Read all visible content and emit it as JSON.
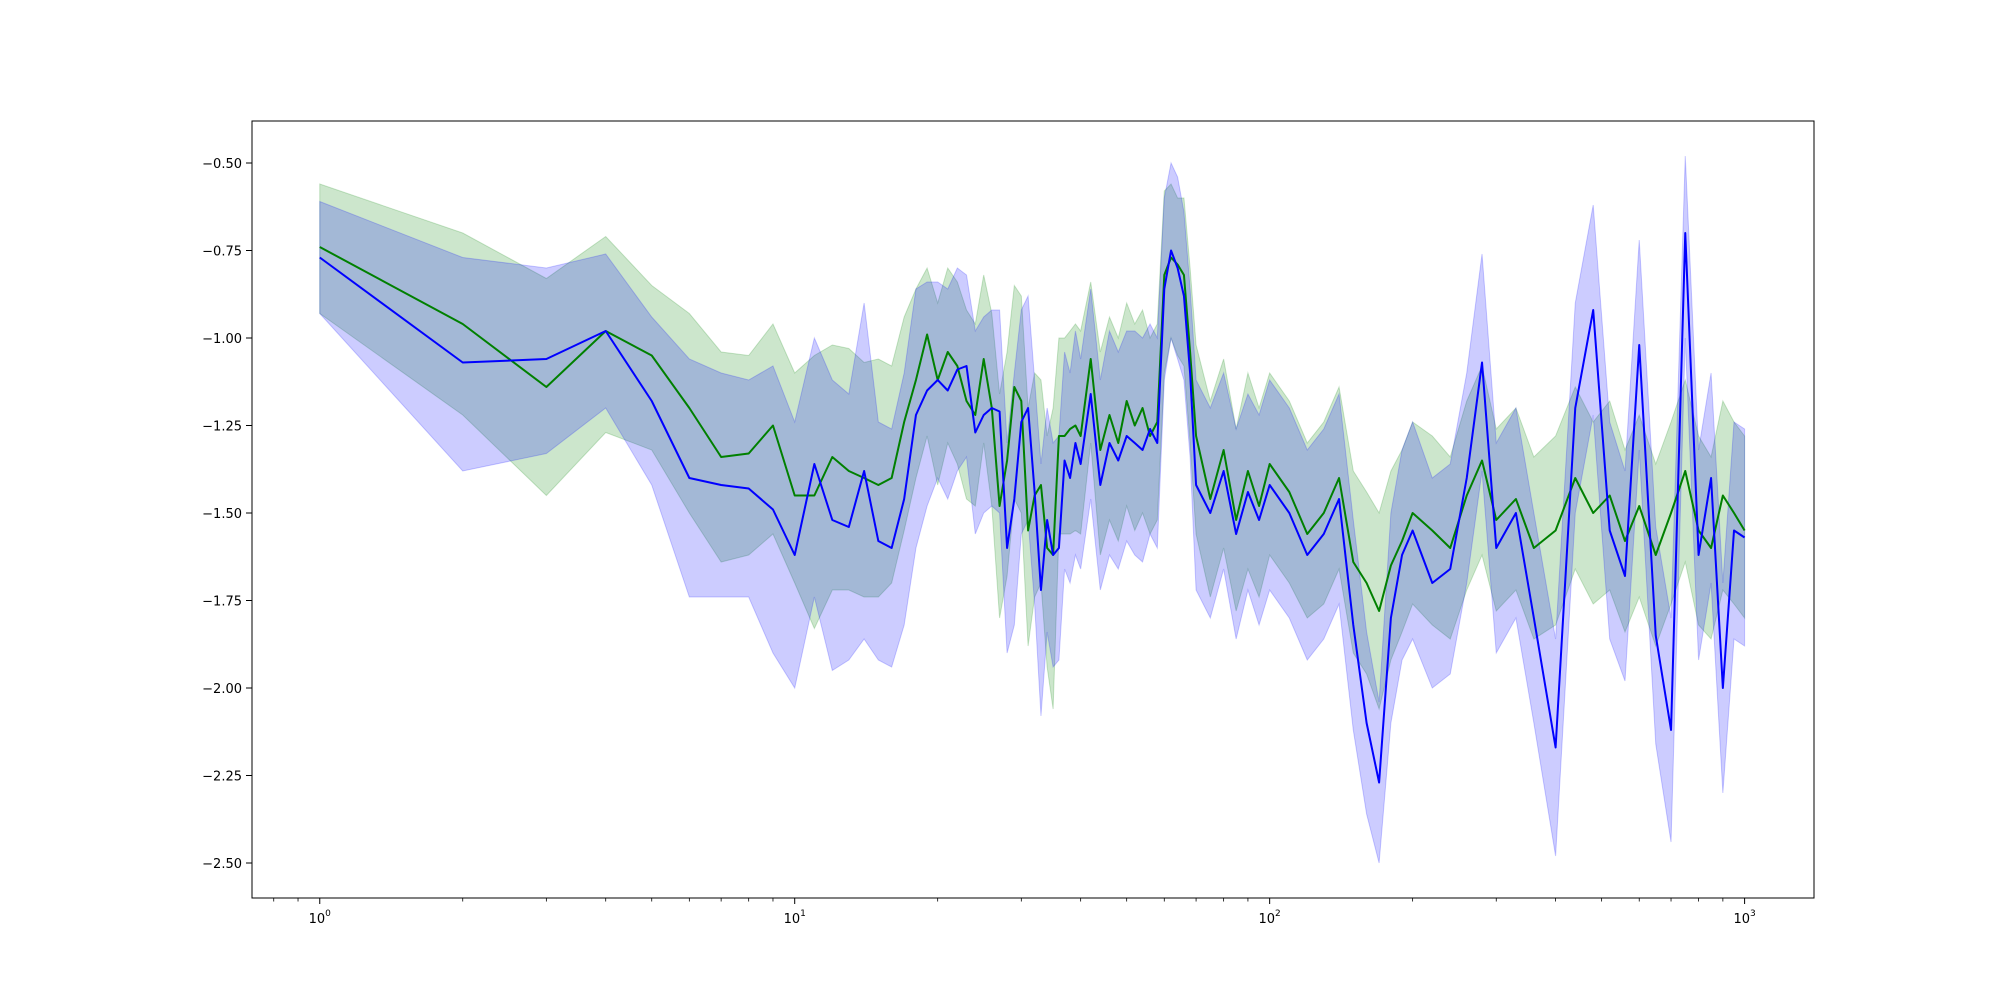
{
  "chart_data": {
    "type": "line",
    "title": "",
    "xlabel": "",
    "ylabel": "",
    "xscale": "log",
    "xlim": [
      0.72,
      1400
    ],
    "ylim": [
      -2.6,
      -0.38
    ],
    "grid": false,
    "legend": "none",
    "x_ticks": [
      {
        "base": "10",
        "exp": "0",
        "value": 1
      },
      {
        "base": "10",
        "exp": "1",
        "value": 10
      },
      {
        "base": "10",
        "exp": "2",
        "value": 100
      },
      {
        "base": "10",
        "exp": "3",
        "value": 1000
      }
    ],
    "y_ticks": [
      {
        "label": "−0.50",
        "value": -0.5
      },
      {
        "label": "−0.75",
        "value": -0.75
      },
      {
        "label": "−1.00",
        "value": -1.0
      },
      {
        "label": "−1.25",
        "value": -1.25
      },
      {
        "label": "−1.50",
        "value": -1.5
      },
      {
        "label": "−1.75",
        "value": -1.75
      },
      {
        "label": "−2.00",
        "value": -2.0
      },
      {
        "label": "−2.25",
        "value": -2.25
      },
      {
        "label": "−2.50",
        "value": -2.5
      }
    ],
    "series": [
      {
        "color": "#008000",
        "band_color": "#008000",
        "band_opacity": 0.2,
        "x": [
          1,
          2,
          3,
          4,
          5,
          6,
          7,
          8,
          9,
          10,
          11,
          12,
          13,
          14,
          15,
          16,
          17,
          18,
          19,
          20,
          21,
          22,
          23,
          24,
          25,
          26,
          27,
          28,
          29,
          30,
          31,
          32,
          33,
          34,
          35,
          36,
          37,
          38,
          39,
          40,
          42,
          44,
          46,
          48,
          50,
          52,
          54,
          56,
          58,
          60,
          62,
          64,
          66,
          68,
          70,
          75,
          80,
          85,
          90,
          95,
          100,
          110,
          120,
          130,
          140,
          150,
          160,
          170,
          180,
          190,
          200,
          220,
          240,
          260,
          280,
          300,
          330,
          360,
          400,
          440,
          480,
          520,
          560,
          600,
          650,
          700,
          750,
          800,
          850,
          900,
          950,
          1000
        ],
        "values": [
          -0.74,
          -0.96,
          -1.14,
          -0.98,
          -1.05,
          -1.2,
          -1.34,
          -1.33,
          -1.25,
          -1.45,
          -1.45,
          -1.34,
          -1.38,
          -1.4,
          -1.42,
          -1.4,
          -1.24,
          -1.12,
          -0.99,
          -1.12,
          -1.04,
          -1.08,
          -1.18,
          -1.22,
          -1.06,
          -1.2,
          -1.48,
          -1.35,
          -1.14,
          -1.18,
          -1.55,
          -1.45,
          -1.42,
          -1.6,
          -1.62,
          -1.28,
          -1.28,
          -1.26,
          -1.25,
          -1.28,
          -1.06,
          -1.32,
          -1.22,
          -1.3,
          -1.18,
          -1.25,
          -1.2,
          -1.28,
          -1.24,
          -0.82,
          -0.77,
          -0.79,
          -0.82,
          -1.04,
          -1.28,
          -1.46,
          -1.32,
          -1.52,
          -1.38,
          -1.48,
          -1.36,
          -1.44,
          -1.56,
          -1.5,
          -1.4,
          -1.64,
          -1.7,
          -1.78,
          -1.65,
          -1.58,
          -1.5,
          -1.55,
          -1.6,
          -1.45,
          -1.35,
          -1.52,
          -1.46,
          -1.6,
          -1.55,
          -1.4,
          -1.5,
          -1.45,
          -1.58,
          -1.48,
          -1.62,
          -1.5,
          -1.38,
          -1.55,
          -1.6,
          -1.45,
          -1.5,
          -1.55
        ],
        "lower": [
          -0.93,
          -1.22,
          -1.45,
          -1.27,
          -1.32,
          -1.5,
          -1.64,
          -1.62,
          -1.56,
          -1.7,
          -1.83,
          -1.72,
          -1.72,
          -1.74,
          -1.74,
          -1.7,
          -1.55,
          -1.4,
          -1.28,
          -1.42,
          -1.3,
          -1.36,
          -1.46,
          -1.48,
          -1.3,
          -1.48,
          -1.8,
          -1.68,
          -1.46,
          -1.5,
          -1.88,
          -1.74,
          -1.7,
          -1.94,
          -2.06,
          -1.56,
          -1.56,
          -1.56,
          -1.55,
          -1.56,
          -1.3,
          -1.62,
          -1.52,
          -1.58,
          -1.48,
          -1.55,
          -1.5,
          -1.56,
          -1.52,
          -1.1,
          -1.0,
          -1.05,
          -1.08,
          -1.3,
          -1.56,
          -1.74,
          -1.6,
          -1.78,
          -1.66,
          -1.74,
          -1.62,
          -1.7,
          -1.8,
          -1.76,
          -1.66,
          -1.9,
          -1.96,
          -2.06,
          -1.92,
          -1.84,
          -1.76,
          -1.82,
          -1.86,
          -1.72,
          -1.62,
          -1.78,
          -1.72,
          -1.86,
          -1.82,
          -1.66,
          -1.76,
          -1.72,
          -1.84,
          -1.74,
          -1.88,
          -1.76,
          -1.64,
          -1.82,
          -1.86,
          -1.72,
          -1.76,
          -1.8
        ],
        "upper": [
          -0.56,
          -0.7,
          -0.83,
          -0.71,
          -0.85,
          -0.93,
          -1.04,
          -1.05,
          -0.96,
          -1.1,
          -1.05,
          -1.02,
          -1.03,
          -1.07,
          -1.06,
          -1.08,
          -0.94,
          -0.86,
          -0.8,
          -0.9,
          -0.8,
          -0.84,
          -0.92,
          -0.96,
          -0.82,
          -0.93,
          -1.16,
          -1.04,
          -0.85,
          -0.88,
          -1.2,
          -1.1,
          -1.12,
          -1.28,
          -1.2,
          -1.0,
          -1.0,
          -0.98,
          -0.96,
          -0.98,
          -0.84,
          -1.04,
          -0.94,
          -1.0,
          -0.9,
          -0.96,
          -0.92,
          -1.0,
          -0.96,
          -0.58,
          -0.56,
          -0.6,
          -0.6,
          -0.8,
          -1.02,
          -1.18,
          -1.06,
          -1.26,
          -1.1,
          -1.2,
          -1.1,
          -1.18,
          -1.3,
          -1.24,
          -1.14,
          -1.38,
          -1.44,
          -1.5,
          -1.38,
          -1.32,
          -1.24,
          -1.28,
          -1.34,
          -1.18,
          -1.08,
          -1.26,
          -1.2,
          -1.34,
          -1.28,
          -1.14,
          -1.24,
          -1.18,
          -1.32,
          -1.22,
          -1.36,
          -1.24,
          -1.12,
          -1.28,
          -1.34,
          -1.18,
          -1.24,
          -1.28
        ]
      },
      {
        "color": "#0000ff",
        "band_color": "#0000ff",
        "band_opacity": 0.2,
        "x": [
          1,
          2,
          3,
          4,
          5,
          6,
          7,
          8,
          9,
          10,
          11,
          12,
          13,
          14,
          15,
          16,
          17,
          18,
          19,
          20,
          21,
          22,
          23,
          24,
          25,
          26,
          27,
          28,
          29,
          30,
          31,
          32,
          33,
          34,
          35,
          36,
          37,
          38,
          39,
          40,
          42,
          44,
          46,
          48,
          50,
          52,
          54,
          56,
          58,
          60,
          62,
          64,
          66,
          68,
          70,
          75,
          80,
          85,
          90,
          95,
          100,
          110,
          120,
          130,
          140,
          150,
          160,
          170,
          180,
          190,
          200,
          220,
          240,
          260,
          280,
          300,
          330,
          360,
          400,
          440,
          480,
          520,
          560,
          600,
          650,
          700,
          750,
          800,
          850,
          900,
          950,
          1000
        ],
        "values": [
          -0.77,
          -1.07,
          -1.06,
          -0.98,
          -1.18,
          -1.4,
          -1.42,
          -1.43,
          -1.49,
          -1.62,
          -1.36,
          -1.52,
          -1.54,
          -1.38,
          -1.58,
          -1.6,
          -1.46,
          -1.22,
          -1.15,
          -1.12,
          -1.15,
          -1.09,
          -1.08,
          -1.27,
          -1.22,
          -1.2,
          -1.21,
          -1.6,
          -1.46,
          -1.24,
          -1.2,
          -1.44,
          -1.72,
          -1.52,
          -1.62,
          -1.6,
          -1.35,
          -1.4,
          -1.3,
          -1.36,
          -1.16,
          -1.42,
          -1.3,
          -1.35,
          -1.28,
          -1.3,
          -1.32,
          -1.26,
          -1.3,
          -0.86,
          -0.75,
          -0.8,
          -0.88,
          -1.1,
          -1.42,
          -1.5,
          -1.38,
          -1.56,
          -1.44,
          -1.52,
          -1.42,
          -1.5,
          -1.62,
          -1.56,
          -1.46,
          -1.82,
          -2.1,
          -2.27,
          -1.8,
          -1.62,
          -1.55,
          -1.7,
          -1.66,
          -1.4,
          -1.07,
          -1.6,
          -1.5,
          -1.8,
          -2.17,
          -1.2,
          -0.92,
          -1.55,
          -1.68,
          -1.02,
          -1.85,
          -2.12,
          -0.7,
          -1.62,
          -1.4,
          -2.0,
          -1.55,
          -1.57
        ],
        "lower": [
          -0.93,
          -1.38,
          -1.33,
          -1.2,
          -1.42,
          -1.74,
          -1.74,
          -1.74,
          -1.9,
          -2.0,
          -1.74,
          -1.95,
          -1.92,
          -1.86,
          -1.92,
          -1.94,
          -1.82,
          -1.6,
          -1.48,
          -1.4,
          -1.46,
          -1.38,
          -1.34,
          -1.56,
          -1.5,
          -1.48,
          -1.5,
          -1.9,
          -1.82,
          -1.56,
          -1.52,
          -1.76,
          -2.08,
          -1.84,
          -1.94,
          -1.92,
          -1.66,
          -1.7,
          -1.62,
          -1.66,
          -1.46,
          -1.72,
          -1.62,
          -1.66,
          -1.58,
          -1.62,
          -1.64,
          -1.56,
          -1.6,
          -1.12,
          -1.0,
          -1.06,
          -1.12,
          -1.34,
          -1.72,
          -1.8,
          -1.66,
          -1.86,
          -1.72,
          -1.82,
          -1.72,
          -1.8,
          -1.92,
          -1.86,
          -1.76,
          -2.12,
          -2.36,
          -2.5,
          -2.1,
          -1.92,
          -1.86,
          -2.0,
          -1.96,
          -1.7,
          -1.38,
          -1.9,
          -1.8,
          -2.1,
          -2.48,
          -1.5,
          -1.22,
          -1.86,
          -1.98,
          -1.32,
          -2.16,
          -2.44,
          -1.0,
          -1.92,
          -1.7,
          -2.3,
          -1.86,
          -1.88
        ],
        "upper": [
          -0.61,
          -0.77,
          -0.8,
          -0.76,
          -0.94,
          -1.06,
          -1.1,
          -1.12,
          -1.08,
          -1.24,
          -1.0,
          -1.12,
          -1.16,
          -0.9,
          -1.24,
          -1.26,
          -1.1,
          -0.86,
          -0.84,
          -0.84,
          -0.86,
          -0.8,
          -0.82,
          -0.98,
          -0.94,
          -0.92,
          -0.92,
          -1.3,
          -1.1,
          -0.92,
          -0.88,
          -1.12,
          -1.36,
          -1.2,
          -1.3,
          -1.28,
          -1.04,
          -1.1,
          -0.98,
          -1.06,
          -0.86,
          -1.12,
          -0.98,
          -1.04,
          -0.98,
          -0.98,
          -1.0,
          -0.96,
          -1.0,
          -0.6,
          -0.5,
          -0.54,
          -0.64,
          -0.86,
          -1.12,
          -1.2,
          -1.1,
          -1.26,
          -1.16,
          -1.22,
          -1.12,
          -1.2,
          -1.32,
          -1.26,
          -1.16,
          -1.52,
          -1.84,
          -2.04,
          -1.5,
          -1.32,
          -1.24,
          -1.4,
          -1.36,
          -1.1,
          -0.76,
          -1.3,
          -1.2,
          -1.5,
          -1.86,
          -0.9,
          -0.62,
          -1.24,
          -1.38,
          -0.72,
          -1.54,
          -1.8,
          -0.48,
          -1.32,
          -1.1,
          -1.7,
          -1.24,
          -1.26
        ]
      }
    ]
  }
}
